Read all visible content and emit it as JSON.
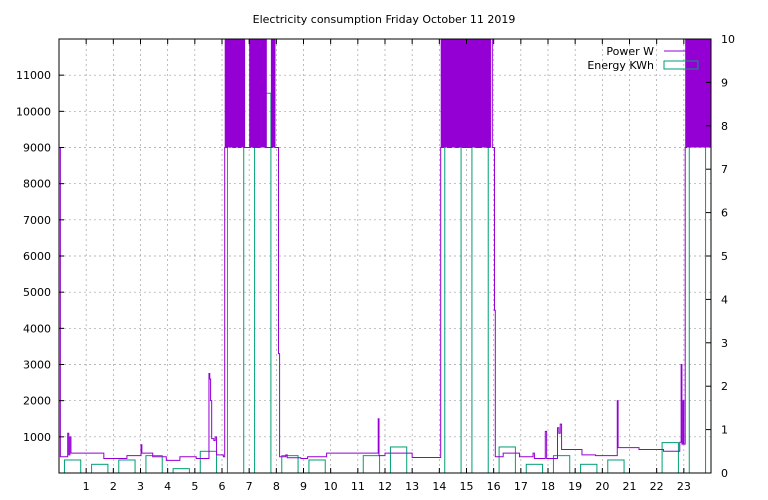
{
  "chart_data": {
    "type": "line",
    "title": "Electricity consumption Friday October 11 2019",
    "xlabel": "",
    "ylabel": "",
    "y2label": "",
    "xlim": [
      0,
      24
    ],
    "ylim": [
      0,
      12000
    ],
    "y2lim": [
      0,
      10
    ],
    "grid": true,
    "legend_position": "top-right",
    "x_ticks": [
      1,
      2,
      3,
      4,
      5,
      6,
      7,
      8,
      9,
      10,
      11,
      12,
      13,
      14,
      15,
      16,
      17,
      18,
      19,
      20,
      21,
      22,
      23
    ],
    "y_ticks": [
      1000,
      2000,
      3000,
      4000,
      5000,
      6000,
      7000,
      8000,
      9000,
      10000,
      11000
    ],
    "y2_ticks": [
      0,
      1,
      2,
      3,
      4,
      5,
      6,
      7,
      8,
      9,
      10
    ],
    "series": [
      {
        "name": "Power W",
        "color": "#9400d3",
        "axis": "y1",
        "points": [
          [
            0,
            9000
          ],
          [
            0.05,
            450
          ],
          [
            0.3,
            450
          ],
          [
            0.32,
            1100
          ],
          [
            0.36,
            500
          ],
          [
            0.4,
            1000
          ],
          [
            0.44,
            550
          ],
          [
            1.6,
            550
          ],
          [
            1.65,
            400
          ],
          [
            2.4,
            400
          ],
          [
            2.5,
            480
          ],
          [
            3.0,
            480
          ],
          [
            3.02,
            780
          ],
          [
            3.05,
            550
          ],
          [
            3.4,
            550
          ],
          [
            3.45,
            450
          ],
          [
            3.9,
            450
          ],
          [
            3.95,
            350
          ],
          [
            4.4,
            350
          ],
          [
            4.45,
            450
          ],
          [
            5.0,
            450
          ],
          [
            5.05,
            400
          ],
          [
            5.5,
            400
          ],
          [
            5.52,
            2750
          ],
          [
            5.55,
            2600
          ],
          [
            5.58,
            2000
          ],
          [
            5.62,
            950
          ],
          [
            5.7,
            900
          ],
          [
            5.75,
            1000
          ],
          [
            5.8,
            500
          ],
          [
            6.05,
            450
          ],
          [
            6.1,
            9000
          ],
          [
            6.2,
            12000
          ],
          [
            6.4,
            9000
          ],
          [
            6.5,
            12000
          ],
          [
            6.6,
            9000
          ],
          [
            6.7,
            12000
          ],
          [
            6.8,
            9000
          ],
          [
            7.0,
            9000
          ],
          [
            7.05,
            12000
          ],
          [
            7.15,
            9000
          ],
          [
            7.35,
            9000
          ],
          [
            7.4,
            12000
          ],
          [
            7.6,
            9000
          ],
          [
            7.8,
            9000
          ],
          [
            7.85,
            12000
          ],
          [
            7.95,
            9000
          ],
          [
            8.05,
            9000
          ],
          [
            8.08,
            3300
          ],
          [
            8.12,
            450
          ],
          [
            8.3,
            450
          ],
          [
            8.35,
            500
          ],
          [
            8.4,
            420
          ],
          [
            8.6,
            420
          ],
          [
            8.9,
            400
          ],
          [
            9.1,
            400
          ],
          [
            9.15,
            450
          ],
          [
            9.8,
            450
          ],
          [
            9.85,
            550
          ],
          [
            11.7,
            550
          ],
          [
            11.75,
            1500
          ],
          [
            11.78,
            480
          ],
          [
            11.95,
            480
          ],
          [
            12.0,
            550
          ],
          [
            12.95,
            550
          ],
          [
            13.0,
            430
          ],
          [
            14.0,
            430
          ],
          [
            14.05,
            9000
          ],
          [
            14.15,
            12000
          ],
          [
            14.3,
            9000
          ],
          [
            14.45,
            12000
          ],
          [
            14.6,
            9000
          ],
          [
            14.7,
            12000
          ],
          [
            14.85,
            9000
          ],
          [
            15.1,
            9000
          ],
          [
            15.2,
            12000
          ],
          [
            15.35,
            9000
          ],
          [
            15.55,
            12000
          ],
          [
            15.75,
            9000
          ],
          [
            15.85,
            12000
          ],
          [
            15.95,
            9000
          ],
          [
            16.0,
            9000
          ],
          [
            16.03,
            4500
          ],
          [
            16.06,
            450
          ],
          [
            16.3,
            450
          ],
          [
            16.35,
            550
          ],
          [
            16.9,
            550
          ],
          [
            16.95,
            450
          ],
          [
            17.4,
            450
          ],
          [
            17.45,
            550
          ],
          [
            17.5,
            400
          ],
          [
            17.85,
            400
          ],
          [
            17.9,
            1150
          ],
          [
            17.95,
            400
          ],
          [
            18.3,
            400
          ],
          [
            18.35,
            1250
          ],
          [
            18.4,
            1100
          ],
          [
            18.45,
            1350
          ],
          [
            18.5,
            650
          ],
          [
            19.2,
            650
          ],
          [
            19.25,
            500
          ],
          [
            19.7,
            500
          ],
          [
            19.75,
            480
          ],
          [
            20.5,
            480
          ],
          [
            20.55,
            2000
          ],
          [
            20.58,
            700
          ],
          [
            21.3,
            700
          ],
          [
            21.35,
            650
          ],
          [
            22.2,
            650
          ],
          [
            22.25,
            600
          ],
          [
            22.8,
            600
          ],
          [
            22.85,
            850
          ],
          [
            22.9,
            3000
          ],
          [
            22.93,
            800
          ],
          [
            22.97,
            2000
          ],
          [
            23.0,
            800
          ],
          [
            23.05,
            9000
          ],
          [
            23.1,
            12000
          ],
          [
            24,
            12000
          ]
        ],
        "fills": [
          [
            6.1,
            6.85
          ],
          [
            7.0,
            7.65
          ],
          [
            7.8,
            7.95
          ],
          [
            14.05,
            15.9
          ],
          [
            23.05,
            24
          ]
        ]
      },
      {
        "name": "Energy KWh",
        "color": "#009e73",
        "axis": "y2",
        "bars": [
          [
            0,
            0.3
          ],
          [
            1,
            0.2
          ],
          [
            2,
            0.3
          ],
          [
            3,
            0.4
          ],
          [
            4,
            0.1
          ],
          [
            5,
            0.5
          ],
          [
            6,
            8.9
          ],
          [
            7,
            8.75
          ],
          [
            8,
            0.4
          ],
          [
            9,
            0.3
          ],
          [
            10,
            0
          ],
          [
            11,
            0.4
          ],
          [
            12,
            0.6
          ],
          [
            13,
            0
          ],
          [
            14,
            9.35
          ],
          [
            15,
            9.1
          ],
          [
            16,
            0.6
          ],
          [
            17,
            0.2
          ],
          [
            18,
            0.4
          ],
          [
            19,
            0.2
          ],
          [
            20,
            0.3
          ],
          [
            21,
            0
          ],
          [
            22,
            0.7
          ],
          [
            23,
            9.5
          ]
        ]
      }
    ]
  }
}
